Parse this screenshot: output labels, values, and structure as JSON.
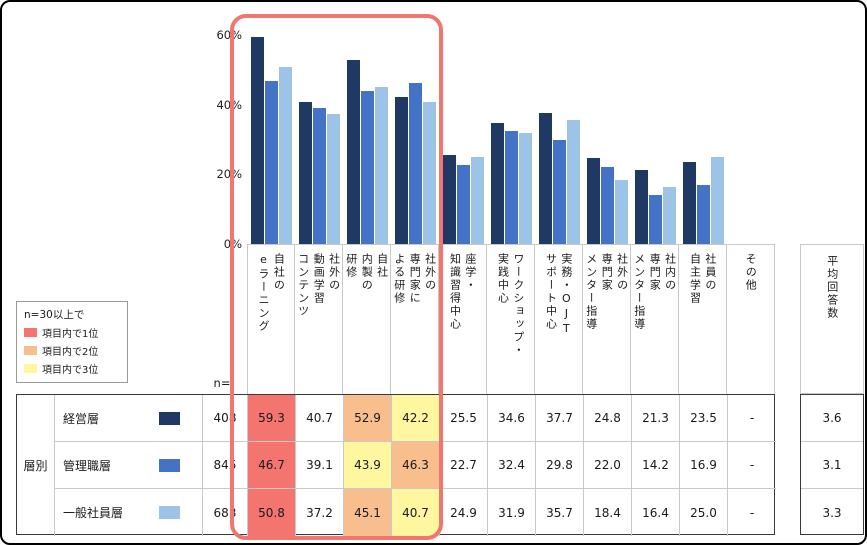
{
  "chart": {
    "yticks": [
      "60%",
      "40%",
      "20%",
      "0%"
    ],
    "ylim": [
      0,
      60
    ]
  },
  "chart_data": {
    "type": "bar",
    "title": "",
    "categories": [
      "自社のeラーニング",
      "社外の動画学習コンテンツ",
      "自社内製の研修",
      "社外の専門家による研修",
      "座学・知識習得中心",
      "ワークショップ・実践中心",
      "実務・OJTサポート中心",
      "社外の専門家メンター指導",
      "社内の専門家メンター指導",
      "社員の自主学習",
      "その他"
    ],
    "series": [
      {
        "name": "経営層",
        "color": "#1F3864",
        "values": [
          59.3,
          40.7,
          52.9,
          42.2,
          25.5,
          34.6,
          37.7,
          24.8,
          21.3,
          23.5,
          null
        ]
      },
      {
        "name": "管理職層",
        "color": "#4472C4",
        "values": [
          46.7,
          39.1,
          43.9,
          46.3,
          22.7,
          32.4,
          29.8,
          22.0,
          14.2,
          16.9,
          null
        ]
      },
      {
        "name": "一般社員層",
        "color": "#9DC3E6",
        "values": [
          50.8,
          37.2,
          45.1,
          40.7,
          24.9,
          31.9,
          35.7,
          18.4,
          16.4,
          25.0,
          null
        ]
      }
    ],
    "ylim": [
      0,
      60
    ],
    "ylabel": "",
    "grid": false,
    "legend_position": "table-left"
  },
  "legend": {
    "title": "n=30以上で",
    "items": [
      {
        "label": "項目内で1位",
        "color": "#F4756F"
      },
      {
        "label": "項目内で2位",
        "color": "#F9BE8E"
      },
      {
        "label": "項目内で3位",
        "color": "#FFF6A0"
      }
    ]
  },
  "table": {
    "group_label": "層別",
    "n_label": "n=",
    "avg_header": "平均回答数",
    "col_headers": [
      "自社の\neラーニング",
      "社外の\n動画学習\nコンテンツ",
      "自社\n内製の\n研修",
      "社外の\n専門家に\nよる研修",
      "座学・\n知識習得中心",
      "ワークショップ・\n実践中心",
      "実務・OJT\nサポート中心",
      "社外の\n専門家\nメンター指導",
      "社内の\n専門家\nメンター指導",
      "社員の\n自主学習",
      "その他"
    ],
    "rank_colors": {
      "1": "#F4756F",
      "2": "#F9BE8E",
      "3": "#FFF6A0"
    },
    "rows": [
      {
        "name": "経営層",
        "n": "408",
        "color": "#1F3864",
        "values": [
          "59.3",
          "40.7",
          "52.9",
          "42.2",
          "25.5",
          "34.6",
          "37.7",
          "24.8",
          "21.3",
          "23.5",
          "-"
        ],
        "avg": "3.6",
        "highlights": {
          "0": 1,
          "2": 2,
          "3": 3
        }
      },
      {
        "name": "管理職層",
        "n": "845",
        "color": "#4472C4",
        "values": [
          "46.7",
          "39.1",
          "43.9",
          "46.3",
          "22.7",
          "32.4",
          "29.8",
          "22.0",
          "14.2",
          "16.9",
          "-"
        ],
        "avg": "3.1",
        "highlights": {
          "0": 1,
          "2": 3,
          "3": 2
        }
      },
      {
        "name": "一般社員層",
        "n": "683",
        "color": "#9DC3E6",
        "values": [
          "50.8",
          "37.2",
          "45.1",
          "40.7",
          "24.9",
          "31.9",
          "35.7",
          "18.4",
          "16.4",
          "25.0",
          "-"
        ],
        "avg": "3.3",
        "highlights": {
          "0": 1,
          "2": 2,
          "3": 3
        }
      }
    ]
  },
  "annotations": {
    "highlight_box_color": "#F1766D"
  }
}
